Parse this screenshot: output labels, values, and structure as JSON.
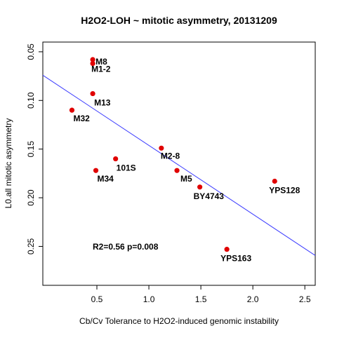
{
  "chart_data": {
    "type": "scatter",
    "title": "H2O2-LOH ~ mitotic asymmetry, 20131209",
    "xlabel": "Cb/Cv Tolerance to H2O2-induced genomic instability",
    "ylabel": "L0.all mitotic asymmetry",
    "xlim": [
      -0.02,
      2.6
    ],
    "ylim": [
      0.04,
      0.29
    ],
    "y_reversed": true,
    "x_ticks": [
      0.5,
      1.0,
      1.5,
      2.0,
      2.5
    ],
    "x_tick_labels": [
      "0.5",
      "1.0",
      "1.5",
      "2.0",
      "2.5"
    ],
    "y_ticks": [
      0.05,
      0.1,
      0.15,
      0.2,
      0.25
    ],
    "y_tick_labels": [
      "0.05",
      "0.10",
      "0.15",
      "0.20",
      "0.25"
    ],
    "grid": false,
    "point_color": "#e00000",
    "line_color": "#3b3bff",
    "points": [
      {
        "label": "M8",
        "x": 0.46,
        "y": 0.058
      },
      {
        "label": "M1-2",
        "x": 0.46,
        "y": 0.062
      },
      {
        "label": "M13",
        "x": 0.46,
        "y": 0.093
      },
      {
        "label": "M32",
        "x": 0.26,
        "y": 0.11
      },
      {
        "label": "101S",
        "x": 0.68,
        "y": 0.16
      },
      {
        "label": "M34",
        "x": 0.49,
        "y": 0.172
      },
      {
        "label": "M2-8",
        "x": 1.12,
        "y": 0.149
      },
      {
        "label": "M5",
        "x": 1.27,
        "y": 0.172
      },
      {
        "label": "BY4743",
        "x": 1.49,
        "y": 0.189
      },
      {
        "label": "YPS128",
        "x": 2.21,
        "y": 0.183
      },
      {
        "label": "YPS163",
        "x": 1.75,
        "y": 0.253
      }
    ],
    "fit_line": {
      "intercept": 0.0755,
      "slope": 0.0707
    },
    "annotation": "R2=0.56 p=0.008"
  }
}
